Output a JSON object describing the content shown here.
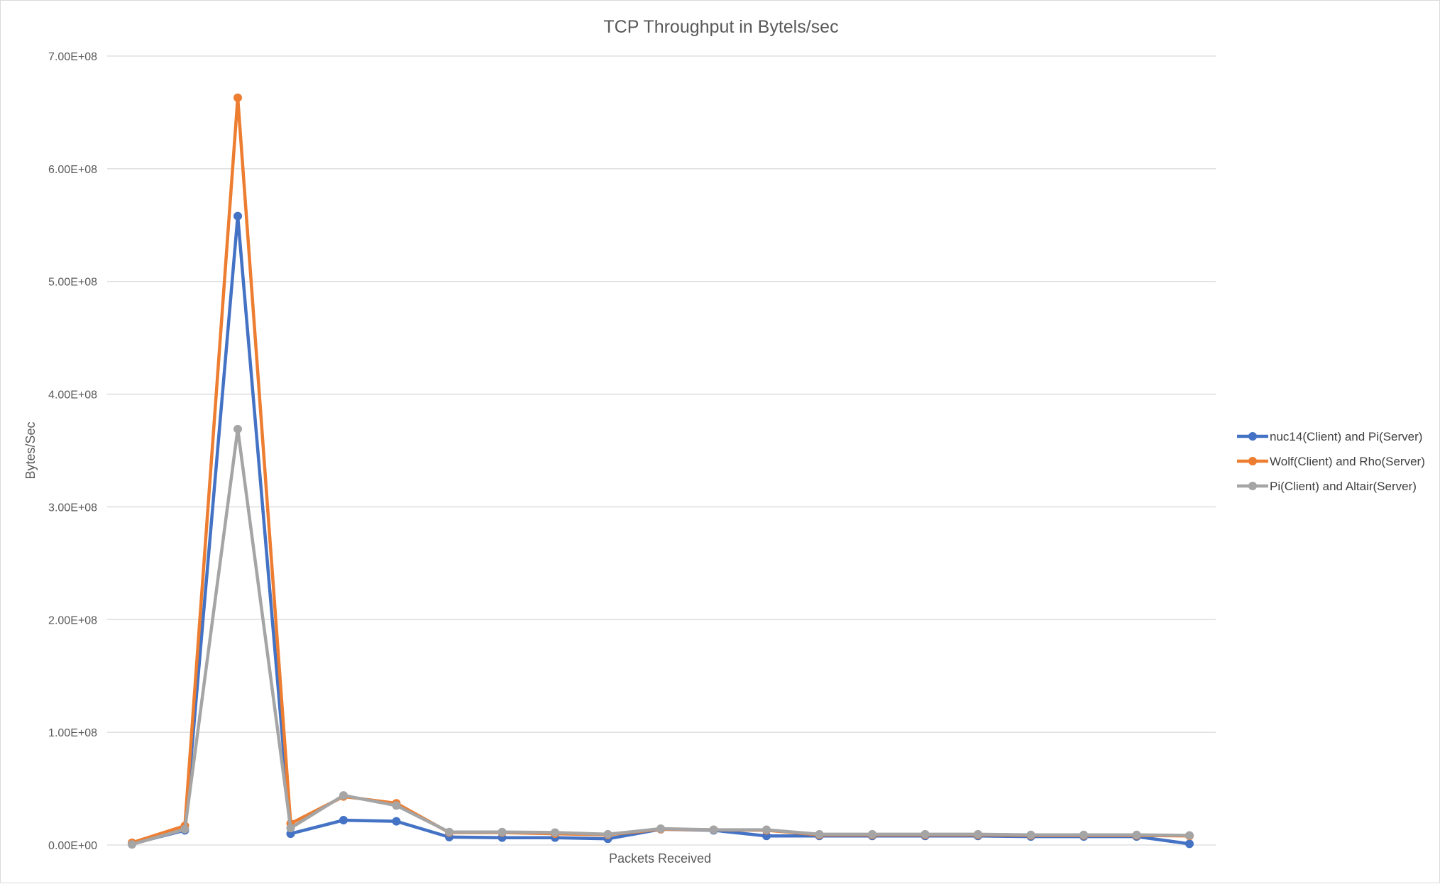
{
  "chart_data": {
    "type": "line",
    "title": "TCP Throughput in Bytels/sec",
    "xlabel": "Packets Received",
    "ylabel": "Bytes/Sec",
    "ylim": [
      0,
      700000000
    ],
    "yticks": [
      0,
      100000000,
      200000000,
      300000000,
      400000000,
      500000000,
      600000000,
      700000000
    ],
    "ytick_labels": [
      "0.00E+00",
      "1.00E+08",
      "2.00E+08",
      "3.00E+08",
      "4.00E+08",
      "5.00E+08",
      "6.00E+08",
      "7.00E+08"
    ],
    "grid": true,
    "legend": "right",
    "x": [
      1,
      2,
      3,
      4,
      5,
      6,
      7,
      8,
      9,
      10,
      11,
      12,
      13,
      14,
      15,
      16,
      17,
      18,
      19,
      20,
      21
    ],
    "series": [
      {
        "name": "nuc14(Client) and Pi(Server)",
        "color": "#4472c4",
        "values": [
          1000000,
          13000000,
          558000000,
          10000000,
          22000000,
          21000000,
          7000000,
          6500000,
          6500000,
          5500000,
          14000000,
          13000000,
          8000000,
          8000000,
          8000000,
          8000000,
          8000000,
          7500000,
          7500000,
          7500000,
          1000000
        ]
      },
      {
        "name": "Wolf(Client) and Rho(Server)",
        "color": "#ed7d31",
        "values": [
          2000000,
          17000000,
          663000000,
          19000000,
          43000000,
          37000000,
          11000000,
          11000000,
          10000000,
          9000000,
          14000000,
          13500000,
          13000000,
          9000000,
          9000000,
          9000000,
          9000000,
          8500000,
          8500000,
          8500000,
          8000000
        ]
      },
      {
        "name": "Pi(Client) and Altair(Server)",
        "color": "#a5a5a5",
        "values": [
          500000,
          14000000,
          369000000,
          15000000,
          44000000,
          35000000,
          11500000,
          11500000,
          11000000,
          9500000,
          14500000,
          13500000,
          13500000,
          9500000,
          9500000,
          9500000,
          9500000,
          9000000,
          9000000,
          9000000,
          8500000
        ]
      }
    ]
  }
}
